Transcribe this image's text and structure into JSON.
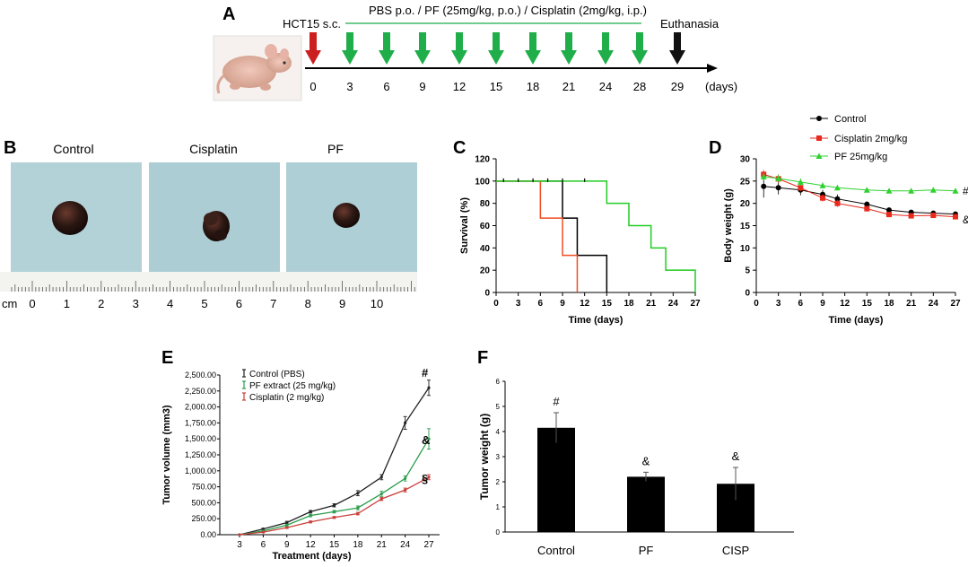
{
  "panels": {
    "A": {
      "label": "A",
      "treatment_text": "PBS p.o.  /  PF (25mg/kg, p.o.)  /  Cisplatin (2mg/kg, i.p.)",
      "inoculation_text": "HCT15 s.c.",
      "euthanasia_text": "Euthanasia",
      "day_labels": [
        "0",
        "3",
        "6",
        "9",
        "12",
        "15",
        "18",
        "21",
        "24",
        "28",
        "29"
      ],
      "days_unit": "(days)",
      "colors": {
        "inoculation": "#cc1f1f",
        "treatment": "#1fae4a",
        "euthanasia": "#111111"
      }
    },
    "B": {
      "label": "B",
      "groups": [
        "Control",
        "Cisplatin",
        "PF"
      ],
      "ruler_unit": "cm",
      "ruler_ticks": [
        "0",
        "1",
        "2",
        "3",
        "4",
        "5",
        "6",
        "7",
        "8",
        "9",
        "10"
      ]
    },
    "C": {
      "label": "C"
    },
    "D": {
      "label": "D"
    },
    "E": {
      "label": "E"
    },
    "F": {
      "label": "F"
    }
  },
  "chart_data": [
    {
      "id": "C",
      "type": "line",
      "subtype": "step",
      "xlabel": "Time (days)",
      "ylabel": "Survival (%)",
      "xlim": [
        0,
        27
      ],
      "ylim": [
        0,
        120
      ],
      "xticks": [
        0,
        3,
        6,
        9,
        12,
        15,
        18,
        21,
        24,
        27
      ],
      "yticks": [
        0,
        20,
        40,
        60,
        80,
        100,
        120
      ],
      "series": [
        {
          "name": "Control",
          "color": "#000000",
          "x": [
            0,
            9,
            11,
            15
          ],
          "y": [
            100,
            66.7,
            33.3,
            0
          ]
        },
        {
          "name": "Cisplatin",
          "color": "#f04e23",
          "x": [
            0,
            6,
            9,
            11
          ],
          "y": [
            100,
            66.7,
            33.3,
            0
          ]
        },
        {
          "name": "PF",
          "color": "#22cc22",
          "x": [
            0,
            15,
            18,
            21,
            23,
            27
          ],
          "y": [
            100,
            80,
            60,
            40,
            20,
            0
          ]
        }
      ],
      "censor_marks": [
        1,
        3,
        5,
        7,
        9,
        12
      ]
    },
    {
      "id": "D",
      "type": "line",
      "xlabel": "Time (days)",
      "ylabel": "Body weight (g)",
      "xlim": [
        0,
        27
      ],
      "ylim": [
        0,
        30
      ],
      "xticks": [
        0,
        3,
        6,
        9,
        12,
        15,
        18,
        21,
        24,
        27
      ],
      "yticks": [
        0,
        5,
        10,
        15,
        20,
        25,
        30
      ],
      "x": [
        1,
        3,
        6,
        9,
        11,
        15,
        18,
        21,
        24,
        27
      ],
      "series": [
        {
          "name": "Control",
          "color": "#000000",
          "marker": "circle",
          "values": [
            23.8,
            23.5,
            23,
            22,
            21,
            19.8,
            18.5,
            18,
            17.8,
            17.6
          ],
          "err": [
            2.5,
            1.5,
            1.2,
            1,
            1,
            0.6,
            0.5,
            0.5,
            0.5,
            0.5
          ]
        },
        {
          "name": "Cisplatin 2mg/kg",
          "color": "#e8291c",
          "marker": "square",
          "values": [
            26.5,
            25.5,
            23.5,
            21.2,
            20,
            18.8,
            17.5,
            17.2,
            17.3,
            17
          ],
          "err": [
            1,
            1,
            0.8,
            0.8,
            0.8,
            0.6,
            0.6,
            0.5,
            0.5,
            0.5
          ]
        },
        {
          "name": "PF 25mg/kg",
          "color": "#2ed12e",
          "marker": "triangle",
          "values": [
            26,
            25.6,
            24.8,
            24,
            23.5,
            23,
            22.8,
            22.8,
            23,
            22.8
          ],
          "err": [
            0.8,
            0.8,
            0.8,
            0.7,
            0.6,
            0.5,
            0.5,
            0.5,
            0.5,
            0.5
          ]
        }
      ],
      "annotations": [
        {
          "text": "#",
          "series": "PF 25mg/kg"
        },
        {
          "text": "&",
          "series": "Control"
        }
      ]
    },
    {
      "id": "E",
      "type": "line",
      "xlabel": "Treatment (days)",
      "ylabel": "Tumor volume (mm3)",
      "ylim": [
        0,
        2500
      ],
      "categories": [
        "3",
        "6",
        "9",
        "12",
        "15",
        "18",
        "21",
        "24",
        "27"
      ],
      "yticks": [
        "0.00",
        "250.00",
        "500.00",
        "750.00",
        "1,000.00",
        "1,250.00",
        "1,500.00",
        "1,750.00",
        "2,000.00",
        "2,250.00",
        "2,500.00"
      ],
      "series": [
        {
          "name": "Control (PBS)",
          "color": "#222222",
          "values": [
            0,
            90,
            190,
            360,
            460,
            650,
            900,
            1750,
            2300
          ],
          "err": [
            0,
            10,
            20,
            20,
            25,
            40,
            40,
            100,
            120
          ]
        },
        {
          "name": "PF extract (25 mg/kg)",
          "color": "#2a9d4b",
          "values": [
            0,
            60,
            150,
            300,
            360,
            420,
            640,
            880,
            1500
          ],
          "err": [
            0,
            10,
            15,
            20,
            20,
            30,
            40,
            40,
            160
          ]
        },
        {
          "name": "Cisplatin (2 mg/kg)",
          "color": "#c8403c",
          "values": [
            0,
            40,
            110,
            200,
            270,
            330,
            560,
            700,
            900
          ],
          "err": [
            0,
            8,
            12,
            15,
            15,
            20,
            25,
            30,
            40
          ]
        }
      ],
      "annotations": [
        {
          "text": "#",
          "series": "Control (PBS)"
        },
        {
          "text": "&",
          "series": "PF extract (25 mg/kg)"
        },
        {
          "text": "§",
          "series": "Cisplatin (2 mg/kg)"
        }
      ]
    },
    {
      "id": "F",
      "type": "bar",
      "ylabel": "Tumor weight (g)",
      "ylim": [
        0,
        6
      ],
      "yticks": [
        "0",
        "1",
        "2",
        "3",
        "4",
        "5",
        "6"
      ],
      "categories": [
        "Control",
        "PF",
        "CISP"
      ],
      "values": [
        4.15,
        2.2,
        1.92
      ],
      "err": [
        0.6,
        0.18,
        0.65
      ],
      "markers": [
        "#",
        "&",
        "&"
      ],
      "color": "#000000"
    }
  ]
}
